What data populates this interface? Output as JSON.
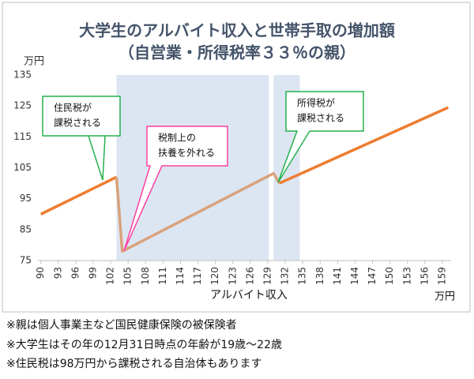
{
  "chart_data": {
    "type": "line",
    "title": "大学生のアルバイト収入と世帯手取の増加額",
    "subtitle": "（自営業・所得税率３３％の親）",
    "y_unit": "万円",
    "x_label": "アルバイト収入",
    "x_unit": "万円",
    "xlim": [
      89.5,
      160.5
    ],
    "xticks": [
      90,
      93,
      96,
      99,
      102,
      105,
      108,
      111,
      114,
      117,
      120,
      123,
      126,
      129,
      132,
      135,
      138,
      141,
      144,
      147,
      150,
      153,
      156,
      159
    ],
    "ylim": [
      75,
      135
    ],
    "yticks": [
      75,
      85,
      95,
      105,
      115,
      125,
      135
    ],
    "shaded_ranges": [
      [
        103,
        129.2
      ],
      [
        130,
        134.5
      ]
    ],
    "shade_color": "#dce6f2",
    "series": [
      {
        "color": "#ed7d31",
        "x": [
          90,
          103
        ],
        "values": [
          90,
          102
        ]
      },
      {
        "color": "#d9a27c",
        "x": [
          103,
          104,
          130,
          131
        ],
        "values": [
          102,
          78,
          103.2,
          100
        ]
      },
      {
        "color": "#ed7d31",
        "x": [
          131,
          160
        ],
        "values": [
          100,
          124.5
        ]
      }
    ],
    "annotations": [
      {
        "lines": [
          "住民税が",
          "課税される"
        ],
        "border": "#22b14c"
      },
      {
        "lines": [
          "税制上の",
          "扶養を外れる"
        ],
        "border": "#ff3ea0"
      },
      {
        "lines": [
          "所得税が",
          "課税される"
        ],
        "border": "#22b14c"
      }
    ]
  },
  "notes": [
    "※親は個人事業主など国民健康保険の被保険者",
    "※大学生はその年の12月31日時点の年齢が19歳～22歳",
    "※住民税は98万円から課税される自治体もあります"
  ]
}
